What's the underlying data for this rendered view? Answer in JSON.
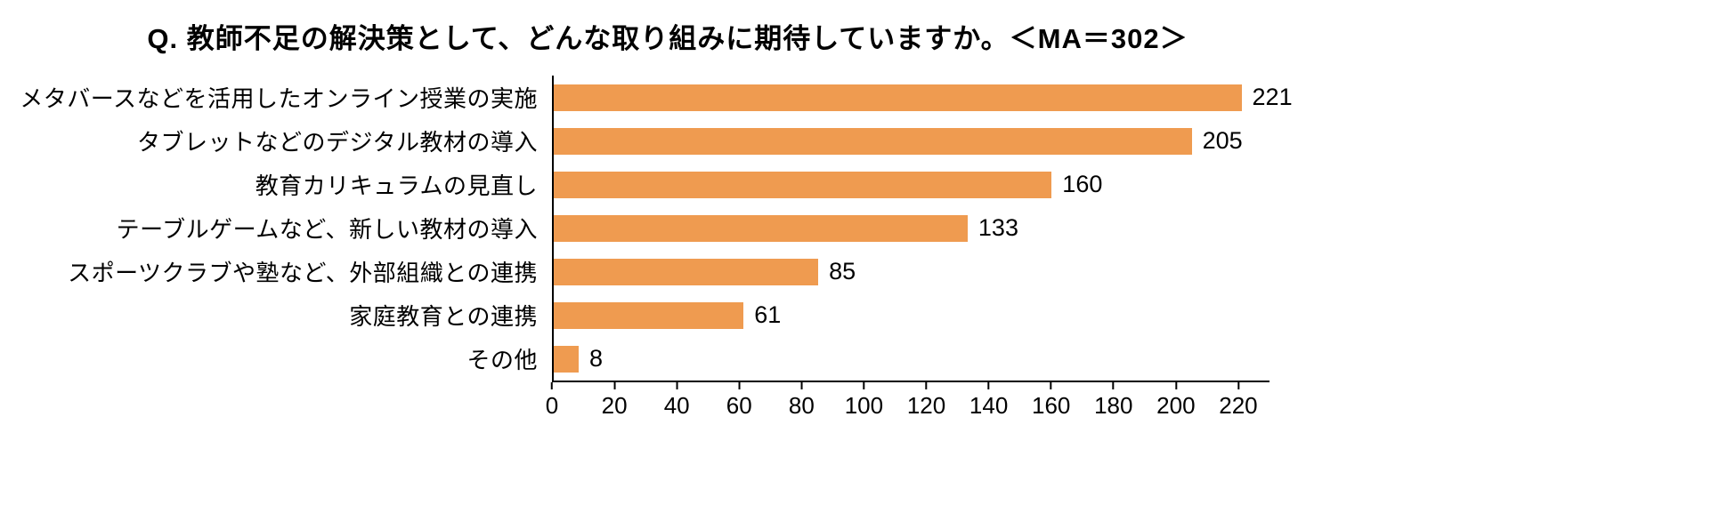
{
  "chart_data": {
    "type": "bar",
    "orientation": "horizontal",
    "title": "Q. 教師不足の解決策として、どんな取り組みに期待していますか。＜MA＝302＞",
    "categories": [
      "メタバースなどを活用したオンライン授業の実施",
      "タブレットなどのデジタル教材の導入",
      "教育カリキュラムの見直し",
      "テーブルゲームなど、新しい教材の導入",
      "スポーツクラブや塾など、外部組織との連携",
      "家庭教育との連携",
      "その他"
    ],
    "values": [
      221,
      205,
      160,
      133,
      85,
      61,
      8
    ],
    "value_labels_shown": true,
    "xlabel": "",
    "ylabel": "",
    "xlim": [
      0,
      230
    ],
    "xticks": [
      0,
      20,
      40,
      60,
      80,
      100,
      120,
      140,
      160,
      180,
      200,
      220
    ],
    "grid": false,
    "legend": "none",
    "bar_color": "#EF9B50",
    "axis_color": "#000000",
    "background_color": "#FFFFFF"
  }
}
